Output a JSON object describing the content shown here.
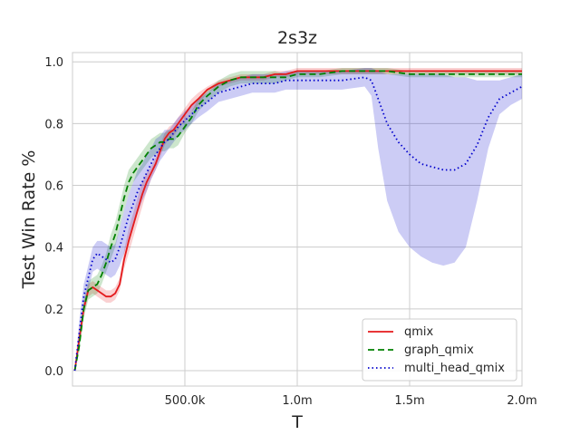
{
  "chart_data": {
    "type": "line",
    "title": "2s3z",
    "xlabel": "T",
    "ylabel": "Test Win Rate %",
    "xlim": [
      0,
      2000000
    ],
    "ylim": [
      -0.05,
      1.03
    ],
    "x_ticks": [
      500000,
      1000000,
      1500000,
      2000000
    ],
    "x_tick_labels": [
      "500.0k",
      "1.0m",
      "1.5m",
      "2.0m"
    ],
    "y_ticks": [
      0.0,
      0.2,
      0.4,
      0.6,
      0.8,
      1.0
    ],
    "y_tick_labels": [
      "0.0",
      "0.2",
      "0.4",
      "0.6",
      "0.8",
      "1.0"
    ],
    "grid": true,
    "legend_position": "bottom-right",
    "series": [
      {
        "name": "qmix",
        "color": "#e41a1c",
        "linestyle": "solid",
        "x": [
          10000,
          30000,
          50000,
          70000,
          90000,
          110000,
          130000,
          150000,
          170000,
          190000,
          210000,
          230000,
          250000,
          270000,
          290000,
          310000,
          330000,
          350000,
          370000,
          390000,
          410000,
          430000,
          450000,
          470000,
          500000,
          530000,
          560000,
          600000,
          650000,
          700000,
          750000,
          800000,
          850000,
          900000,
          950000,
          1000000,
          1100000,
          1200000,
          1300000,
          1400000,
          1500000,
          1600000,
          1700000,
          1800000,
          1900000,
          1950000,
          2000000
        ],
        "y": [
          0.0,
          0.1,
          0.2,
          0.26,
          0.27,
          0.26,
          0.25,
          0.24,
          0.24,
          0.25,
          0.28,
          0.36,
          0.42,
          0.47,
          0.52,
          0.57,
          0.61,
          0.64,
          0.67,
          0.71,
          0.75,
          0.77,
          0.78,
          0.8,
          0.83,
          0.86,
          0.88,
          0.91,
          0.93,
          0.94,
          0.95,
          0.95,
          0.95,
          0.96,
          0.96,
          0.97,
          0.97,
          0.97,
          0.97,
          0.97,
          0.97,
          0.97,
          0.97,
          0.97,
          0.97,
          0.97,
          0.97
        ],
        "band_low": [
          0.0,
          0.08,
          0.18,
          0.24,
          0.25,
          0.24,
          0.23,
          0.22,
          0.22,
          0.23,
          0.26,
          0.33,
          0.38,
          0.43,
          0.48,
          0.53,
          0.58,
          0.62,
          0.65,
          0.69,
          0.73,
          0.75,
          0.76,
          0.78,
          0.81,
          0.84,
          0.86,
          0.9,
          0.92,
          0.93,
          0.94,
          0.94,
          0.94,
          0.95,
          0.95,
          0.96,
          0.96,
          0.96,
          0.96,
          0.96,
          0.96,
          0.96,
          0.96,
          0.96,
          0.96,
          0.96,
          0.96
        ],
        "band_high": [
          0.0,
          0.12,
          0.22,
          0.28,
          0.29,
          0.28,
          0.27,
          0.26,
          0.26,
          0.27,
          0.3,
          0.39,
          0.46,
          0.51,
          0.56,
          0.61,
          0.64,
          0.66,
          0.69,
          0.73,
          0.77,
          0.79,
          0.8,
          0.82,
          0.85,
          0.88,
          0.9,
          0.92,
          0.94,
          0.95,
          0.96,
          0.96,
          0.96,
          0.97,
          0.97,
          0.98,
          0.98,
          0.98,
          0.98,
          0.98,
          0.98,
          0.98,
          0.98,
          0.98,
          0.98,
          0.98,
          0.98
        ]
      },
      {
        "name": "graph_qmix",
        "color": "#008000",
        "linestyle": "dashed",
        "x": [
          10000,
          30000,
          50000,
          70000,
          90000,
          110000,
          130000,
          150000,
          170000,
          190000,
          210000,
          230000,
          250000,
          270000,
          290000,
          310000,
          330000,
          350000,
          370000,
          390000,
          410000,
          430000,
          450000,
          470000,
          500000,
          530000,
          560000,
          600000,
          650000,
          700000,
          750000,
          800000,
          850000,
          900000,
          950000,
          1000000,
          1100000,
          1200000,
          1300000,
          1400000,
          1500000,
          1600000,
          1700000,
          1800000,
          1900000,
          1950000,
          2000000
        ],
        "y": [
          0.0,
          0.08,
          0.2,
          0.26,
          0.27,
          0.28,
          0.31,
          0.35,
          0.4,
          0.44,
          0.5,
          0.56,
          0.61,
          0.64,
          0.66,
          0.68,
          0.7,
          0.72,
          0.73,
          0.74,
          0.74,
          0.75,
          0.75,
          0.76,
          0.79,
          0.82,
          0.86,
          0.89,
          0.92,
          0.94,
          0.95,
          0.95,
          0.95,
          0.95,
          0.95,
          0.96,
          0.96,
          0.97,
          0.97,
          0.97,
          0.96,
          0.96,
          0.96,
          0.96,
          0.96,
          0.96,
          0.96
        ],
        "band_low": [
          0.0,
          0.06,
          0.17,
          0.23,
          0.24,
          0.25,
          0.28,
          0.32,
          0.36,
          0.4,
          0.46,
          0.52,
          0.57,
          0.61,
          0.63,
          0.65,
          0.67,
          0.69,
          0.7,
          0.71,
          0.71,
          0.72,
          0.72,
          0.73,
          0.77,
          0.8,
          0.84,
          0.87,
          0.9,
          0.92,
          0.93,
          0.93,
          0.93,
          0.93,
          0.94,
          0.95,
          0.95,
          0.96,
          0.96,
          0.96,
          0.95,
          0.95,
          0.95,
          0.95,
          0.95,
          0.95,
          0.95
        ],
        "band_high": [
          0.0,
          0.1,
          0.23,
          0.29,
          0.3,
          0.31,
          0.34,
          0.38,
          0.44,
          0.48,
          0.54,
          0.6,
          0.65,
          0.67,
          0.69,
          0.71,
          0.73,
          0.75,
          0.76,
          0.77,
          0.77,
          0.78,
          0.78,
          0.79,
          0.81,
          0.84,
          0.88,
          0.91,
          0.94,
          0.96,
          0.97,
          0.97,
          0.97,
          0.97,
          0.96,
          0.97,
          0.97,
          0.98,
          0.98,
          0.98,
          0.97,
          0.97,
          0.97,
          0.97,
          0.97,
          0.97,
          0.97
        ]
      },
      {
        "name": "multi_head_qmix",
        "color": "#0000cc",
        "linestyle": "dotted",
        "x": [
          10000,
          30000,
          50000,
          70000,
          90000,
          110000,
          130000,
          150000,
          170000,
          190000,
          210000,
          230000,
          250000,
          270000,
          290000,
          310000,
          330000,
          350000,
          370000,
          390000,
          410000,
          430000,
          450000,
          470000,
          500000,
          530000,
          560000,
          600000,
          650000,
          700000,
          750000,
          800000,
          850000,
          900000,
          950000,
          1000000,
          1100000,
          1200000,
          1300000,
          1330000,
          1360000,
          1400000,
          1450000,
          1500000,
          1550000,
          1600000,
          1650000,
          1700000,
          1750000,
          1800000,
          1850000,
          1900000,
          1950000,
          2000000
        ],
        "y": [
          0.0,
          0.12,
          0.24,
          0.3,
          0.36,
          0.38,
          0.37,
          0.36,
          0.35,
          0.36,
          0.4,
          0.45,
          0.5,
          0.54,
          0.58,
          0.61,
          0.64,
          0.67,
          0.7,
          0.72,
          0.74,
          0.75,
          0.77,
          0.79,
          0.81,
          0.83,
          0.85,
          0.87,
          0.9,
          0.91,
          0.92,
          0.93,
          0.93,
          0.93,
          0.94,
          0.94,
          0.94,
          0.94,
          0.95,
          0.94,
          0.88,
          0.8,
          0.74,
          0.7,
          0.67,
          0.66,
          0.65,
          0.65,
          0.67,
          0.73,
          0.82,
          0.88,
          0.9,
          0.92
        ],
        "band_low": [
          0.0,
          0.08,
          0.2,
          0.26,
          0.32,
          0.33,
          0.32,
          0.31,
          0.3,
          0.31,
          0.34,
          0.38,
          0.43,
          0.47,
          0.51,
          0.55,
          0.58,
          0.62,
          0.65,
          0.68,
          0.7,
          0.72,
          0.74,
          0.76,
          0.78,
          0.8,
          0.82,
          0.84,
          0.87,
          0.88,
          0.89,
          0.9,
          0.9,
          0.9,
          0.91,
          0.91,
          0.91,
          0.91,
          0.92,
          0.89,
          0.72,
          0.55,
          0.45,
          0.4,
          0.37,
          0.35,
          0.34,
          0.35,
          0.4,
          0.55,
          0.72,
          0.83,
          0.86,
          0.88
        ],
        "band_high": [
          0.0,
          0.16,
          0.28,
          0.34,
          0.4,
          0.42,
          0.42,
          0.41,
          0.4,
          0.41,
          0.46,
          0.52,
          0.57,
          0.61,
          0.65,
          0.67,
          0.7,
          0.72,
          0.75,
          0.76,
          0.78,
          0.78,
          0.8,
          0.82,
          0.84,
          0.86,
          0.88,
          0.9,
          0.93,
          0.94,
          0.95,
          0.96,
          0.96,
          0.96,
          0.97,
          0.97,
          0.97,
          0.97,
          0.98,
          0.98,
          0.97,
          0.96,
          0.96,
          0.96,
          0.96,
          0.96,
          0.96,
          0.95,
          0.95,
          0.94,
          0.94,
          0.94,
          0.95,
          0.96
        ]
      }
    ]
  }
}
